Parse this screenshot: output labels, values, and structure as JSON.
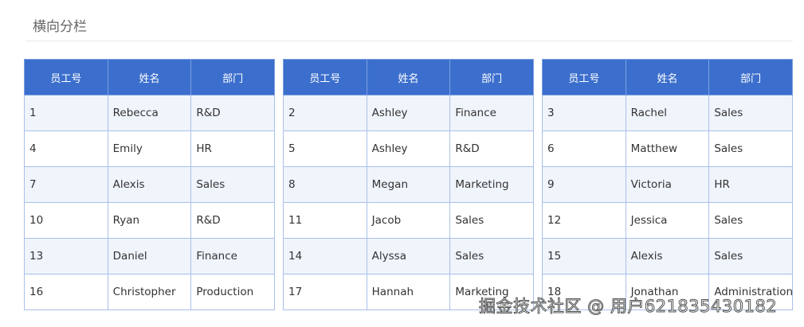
{
  "title": "横向分栏",
  "headers": [
    "员工号",
    "姓名",
    "部门"
  ],
  "tables": [
    {
      "rows": [
        [
          "1",
          "Rebecca",
          "R&D"
        ],
        [
          "4",
          "Emily",
          "HR"
        ],
        [
          "7",
          "Alexis",
          "Sales"
        ],
        [
          "10",
          "Ryan",
          "R&D"
        ],
        [
          "13",
          "Daniel",
          "Finance"
        ],
        [
          "16",
          "Christopher",
          "Production"
        ]
      ]
    },
    {
      "rows": [
        [
          "2",
          "Ashley",
          "Finance"
        ],
        [
          "5",
          "Ashley",
          "R&D"
        ],
        [
          "8",
          "Megan",
          "Marketing"
        ],
        [
          "11",
          "Jacob",
          "Sales"
        ],
        [
          "14",
          "Alyssa",
          "Sales"
        ],
        [
          "17",
          "Hannah",
          "Marketing"
        ]
      ]
    },
    {
      "rows": [
        [
          "3",
          "Rachel",
          "Sales"
        ],
        [
          "6",
          "Matthew",
          "Sales"
        ],
        [
          "9",
          "Victoria",
          "HR"
        ],
        [
          "12",
          "Jessica",
          "Sales"
        ],
        [
          "15",
          "Alexis",
          "Sales"
        ],
        [
          "18",
          "Jonathan",
          "Administration"
        ]
      ]
    }
  ],
  "watermark": "掘金技术社区 @ 用户621835430182"
}
